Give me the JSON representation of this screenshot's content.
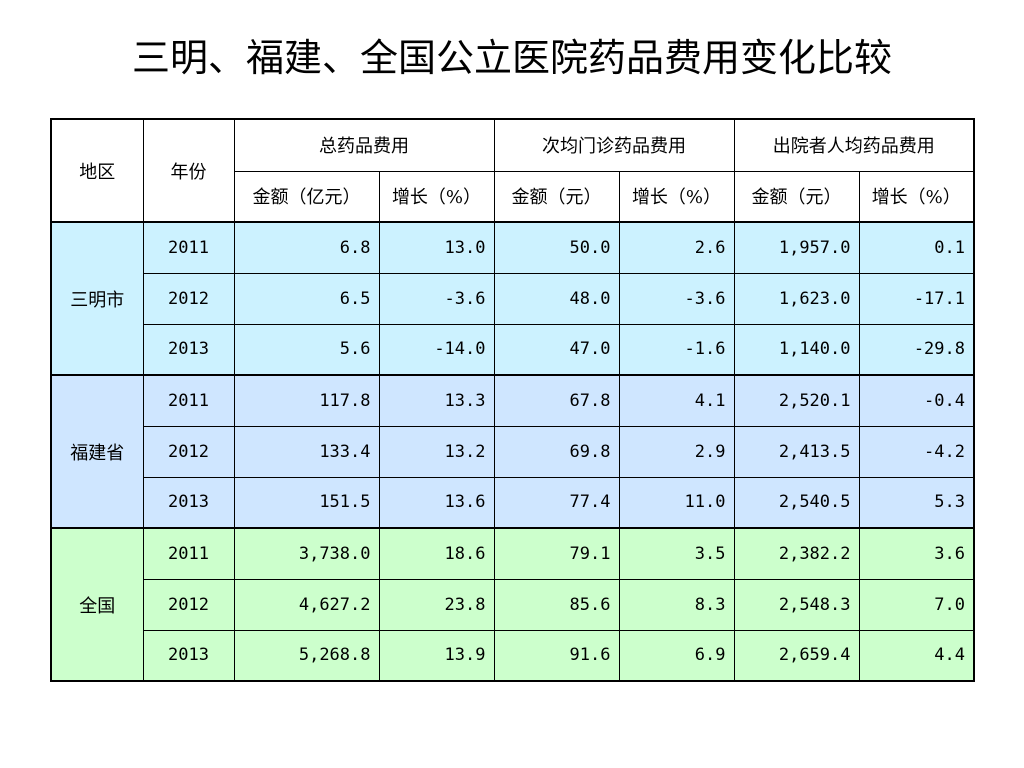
{
  "title": "三明、福建、全国公立医院药品费用变化比较",
  "colors": {
    "sanming": "#ccf2ff",
    "fujian": "#cfe6ff",
    "national": "#ccffcc",
    "header": "#ffffff"
  },
  "header": {
    "region": "地区",
    "year": "年份",
    "group1": "总药品费用",
    "group2": "次均门诊药品费用",
    "group3": "出院者人均药品费用",
    "g1_amount": "金额（亿元）",
    "g1_growth": "增长（%）",
    "g2_amount": "金额（元）",
    "g2_growth": "增长（%）",
    "g3_amount": "金额（元）",
    "g3_growth": "增长（%）"
  },
  "regions": [
    {
      "name": "三明市",
      "rows": [
        {
          "year": "2011",
          "v": [
            "6.8",
            "13.0",
            "50.0",
            "2.6",
            "1,957.0",
            "0.1"
          ]
        },
        {
          "year": "2012",
          "v": [
            "6.5",
            "-3.6",
            "48.0",
            "-3.6",
            "1,623.0",
            "-17.1"
          ]
        },
        {
          "year": "2013",
          "v": [
            "5.6",
            "-14.0",
            "47.0",
            "-1.6",
            "1,140.0",
            "-29.8"
          ]
        }
      ]
    },
    {
      "name": "福建省",
      "rows": [
        {
          "year": "2011",
          "v": [
            "117.8",
            "13.3",
            "67.8",
            "4.1",
            "2,520.1",
            "-0.4"
          ]
        },
        {
          "year": "2012",
          "v": [
            "133.4",
            "13.2",
            "69.8",
            "2.9",
            "2,413.5",
            "-4.2"
          ]
        },
        {
          "year": "2013",
          "v": [
            "151.5",
            "13.6",
            "77.4",
            "11.0",
            "2,540.5",
            "5.3"
          ]
        }
      ]
    },
    {
      "name": "全国",
      "rows": [
        {
          "year": "2011",
          "v": [
            "3,738.0",
            "18.6",
            "79.1",
            "3.5",
            "2,382.2",
            "3.6"
          ]
        },
        {
          "year": "2012",
          "v": [
            "4,627.2",
            "23.8",
            "85.6",
            "8.3",
            "2,548.3",
            "7.0"
          ]
        },
        {
          "year": "2013",
          "v": [
            "5,268.8",
            "13.9",
            "91.6",
            "6.9",
            "2,659.4",
            "4.4"
          ]
        }
      ]
    }
  ]
}
